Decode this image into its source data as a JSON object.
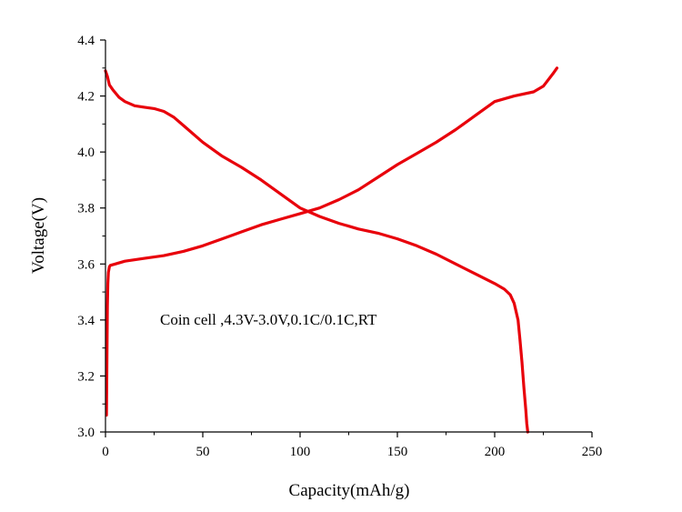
{
  "chart_data": {
    "type": "line",
    "title": "",
    "xlabel": "Capacity(mAh/g)",
    "ylabel": "Voltage(V)",
    "xlim": [
      0,
      250
    ],
    "ylim": [
      3.0,
      4.4
    ],
    "x_ticks": [
      "0",
      "50",
      "100",
      "150",
      "200",
      "250"
    ],
    "y_ticks": [
      "3.0",
      "3.2",
      "3.4",
      "3.6",
      "3.8",
      "4.0",
      "4.2",
      "4.4"
    ],
    "grid": false,
    "legend": "none",
    "annotation": "Coin cell ,4.3V-3.0V,0.1C/0.1C,RT",
    "line_color": "#e8000b",
    "series": [
      {
        "x": [
          0.5,
          0.8,
          1.0,
          1.2,
          1.5,
          2,
          2.5,
          5,
          10,
          20,
          30,
          40,
          50,
          60,
          70,
          80,
          90,
          100,
          110,
          120,
          130,
          140,
          150,
          160,
          170,
          180,
          190,
          200,
          210,
          220,
          225,
          230,
          232
        ],
        "y": [
          3.06,
          3.3,
          3.45,
          3.53,
          3.57,
          3.59,
          3.595,
          3.6,
          3.61,
          3.62,
          3.63,
          3.645,
          3.665,
          3.69,
          3.715,
          3.74,
          3.76,
          3.78,
          3.8,
          3.83,
          3.865,
          3.91,
          3.955,
          3.995,
          4.035,
          4.08,
          4.13,
          4.18,
          4.2,
          4.215,
          4.235,
          4.28,
          4.3
        ]
      },
      {
        "x": [
          0,
          1,
          2,
          4,
          7,
          10,
          15,
          20,
          25,
          30,
          35,
          40,
          50,
          60,
          70,
          80,
          90,
          100,
          110,
          120,
          130,
          140,
          150,
          160,
          170,
          180,
          190,
          200,
          205,
          208,
          210,
          212,
          213,
          214,
          215,
          216,
          216.5,
          217
        ],
        "y": [
          4.29,
          4.27,
          4.24,
          4.22,
          4.195,
          4.18,
          4.165,
          4.16,
          4.155,
          4.145,
          4.125,
          4.095,
          4.035,
          3.985,
          3.945,
          3.9,
          3.85,
          3.8,
          3.77,
          3.745,
          3.725,
          3.71,
          3.69,
          3.665,
          3.635,
          3.6,
          3.565,
          3.53,
          3.51,
          3.49,
          3.46,
          3.4,
          3.33,
          3.25,
          3.16,
          3.08,
          3.03,
          3.0
        ]
      }
    ]
  }
}
